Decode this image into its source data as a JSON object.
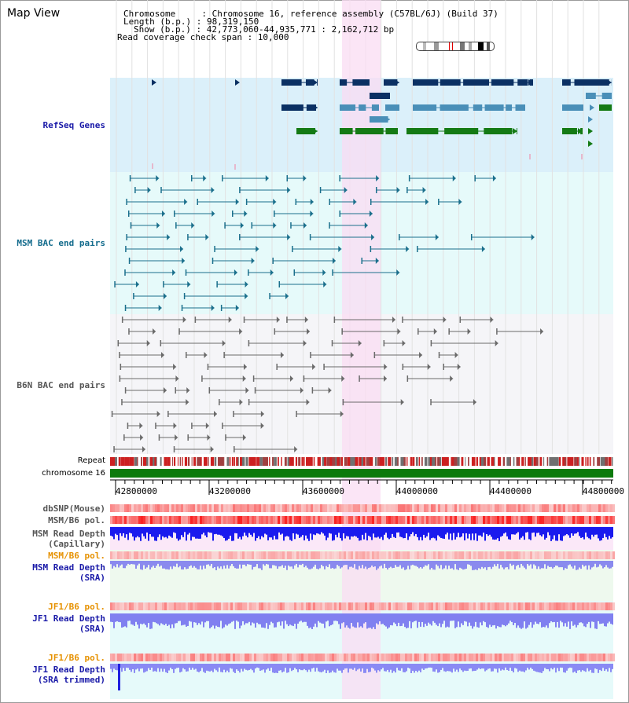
{
  "page": {
    "title": "Map View",
    "info": {
      "chromosome": "Chromosome     : Chromosome 16, reference assembly (C57BL/6J) (Build 37)",
      "length": "Length (b.p.) : 98,319,150",
      "show": "Show (b.p.) : 42,773,060-44,935,771 : 2,162,712 bp",
      "coverage": "Read coverage check span : 10,000"
    }
  },
  "tracks": {
    "refseq": "RefSeq Genes",
    "msm_bac": "MSM BAC end pairs",
    "b6n_bac": "B6N BAC end pairs",
    "repeat": "Repeat",
    "chromosome": "chromosome 16",
    "dbsnp": "dbSNP(Mouse)",
    "msm_pol": "MSM/B6 pol.",
    "msm_depth_cap_1": "MSM Read Depth",
    "msm_depth_cap_2": "(Capillary)",
    "msm_pol_2": "MSM/B6 pol.",
    "msm_depth_sra_1": "MSM Read Depth",
    "msm_depth_sra_2": "(SRA)",
    "jf1_pol": "JF1/B6 pol.",
    "jf1_depth_1": "JF1 Read Depth",
    "jf1_depth_2": "(SRA)",
    "jf1_pol_2": "JF1/B6 pol.",
    "jf1_trim_1": "JF1 Read Depth",
    "jf1_trim_2": "(SRA trimmed)"
  },
  "axis": {
    "ticks": [
      "42800000",
      "43200000",
      "43600000",
      "44000000",
      "44400000",
      "44800000"
    ]
  },
  "colors": {
    "refseq_bg": "#dbf0fa",
    "msm_bac_bg": "#e6fafa",
    "b6n_bac_bg": "#f5f5f8",
    "highlight": "#f9dcf3",
    "gene_navy": "#0b3063",
    "gene_teal": "#4a8fb8",
    "gene_green": "#147a14",
    "msm_line": "#1a6f8c",
    "b6n_line": "#6a6a6a",
    "chrom_green": "#0c7a0c",
    "label_blue": "#1a1aa8",
    "label_teal": "#136b8c",
    "label_gray": "#555555",
    "label_orange": "#e69100"
  }
}
